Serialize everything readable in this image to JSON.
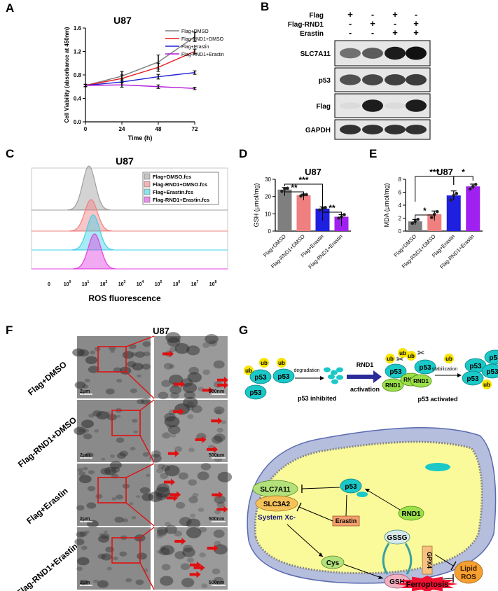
{
  "panels": {
    "a": {
      "letter": "A",
      "title": "U87",
      "ylabel": "Cell Viability (absorbance at 450nm)",
      "xlabel": "Time (h)",
      "yticks": [
        "0.0",
        "0.4",
        "0.8",
        "1.2",
        "1.6"
      ],
      "xticks": [
        "0",
        "24",
        "48",
        "72"
      ],
      "colors": [
        "#7f7f7f",
        "#e41a1c",
        "#1f1fd6",
        "#b41ad6"
      ]
    },
    "b": {
      "letter": "B",
      "rows": [
        {
          "label": "Flag",
          "marks": [
            "+",
            "-",
            "+",
            "-"
          ]
        },
        {
          "label": "Flag-RND1",
          "marks": [
            "-",
            "+",
            "-",
            "+"
          ]
        },
        {
          "label": "Erastin",
          "marks": [
            "-",
            "-",
            "+",
            "+"
          ]
        }
      ],
      "blots": [
        "SLC7A11",
        "p53",
        "Flag",
        "GAPDH"
      ]
    },
    "c": {
      "letter": "C",
      "title": "U87",
      "xlabel": "ROS fluorescence",
      "legend": [
        "Flag+DMSO.fcs",
        "Flag-RND1+DMSO.fcs",
        "Flag+Erastin.fcs",
        "Flag-RND1+Erastin.fcs"
      ],
      "colors": [
        "#9e9e9e",
        "#f08080",
        "#3fd0e8",
        "#e040e0"
      ],
      "xticks": [
        {
          "base": "0",
          "exp": ""
        },
        {
          "base": "10",
          "exp": "0"
        },
        {
          "base": "10",
          "exp": "1"
        },
        {
          "base": "10",
          "exp": "2"
        },
        {
          "base": "10",
          "exp": "3"
        },
        {
          "base": "10",
          "exp": "4"
        },
        {
          "base": "10",
          "exp": "5"
        },
        {
          "base": "10",
          "exp": "6"
        },
        {
          "base": "10",
          "exp": "7"
        },
        {
          "base": "10",
          "exp": "8"
        }
      ]
    },
    "d": {
      "letter": "D",
      "title": "U87",
      "ylabel": "GSH (μmol/mg)",
      "yticks": [
        "0",
        "10",
        "20",
        "30"
      ],
      "sig": [
        "**",
        "***",
        "**"
      ],
      "colors": [
        "#7f7f7f",
        "#f08080",
        "#1f1fe0",
        "#a020f0"
      ]
    },
    "e": {
      "letter": "E",
      "title": "U87",
      "ylabel": "MDA (μmol/mg)",
      "yticks": [
        "0",
        "2",
        "4",
        "6",
        "8"
      ],
      "sig": [
        "*",
        "***",
        "*"
      ],
      "colors": [
        "#7f7f7f",
        "#f08080",
        "#1f1fe0",
        "#a020f0"
      ]
    },
    "f": {
      "letter": "F",
      "title": "U87",
      "rows": [
        "Flag+DMSO",
        "Flag-RND1+DMSO",
        "Flag+Erastin",
        "Flag-RND1+Erastin"
      ],
      "scale_left": "2μm",
      "scale_right": "500nm"
    },
    "g": {
      "letter": "G",
      "ub": "ub",
      "p53": "p53",
      "rnd1": "RND1",
      "degradation": "degradation",
      "rnd1_activation_1": "RND1",
      "rnd1_activation_2": "activation",
      "stabilization": "stabilization",
      "p53_inhibited": "p53 inhibited",
      "p53_activated": "p53 activated",
      "slc7a11": "SLC7A11",
      "slc3a2": "SLC3A2",
      "system_xc": "System Xc-",
      "erastin": "Erastin",
      "gssg": "GSSG",
      "gsh": "GSH",
      "gpx4": "GPX4",
      "cys": "Cys",
      "lipid_1": "Lipid",
      "lipid_2": "ROS",
      "ferroptosis": "Ferroptosis"
    }
  },
  "chart_data": [
    {
      "type": "line",
      "title": "U87",
      "xlabel": "Time (h)",
      "ylabel": "Cell Viability (absorbance at 450nm)",
      "x": [
        0,
        24,
        48,
        72
      ],
      "xlim": [
        0,
        72
      ],
      "ylim": [
        0,
        1.6
      ],
      "legend_position": "top-right",
      "series": [
        {
          "name": "Flag+DMSO",
          "values": [
            0.62,
            0.78,
            1.02,
            1.45
          ],
          "err": [
            0.02,
            0.08,
            0.12,
            0.08
          ]
        },
        {
          "name": "Flag-RND1+DMSO",
          "values": [
            0.62,
            0.74,
            0.93,
            1.2
          ],
          "err": [
            0.02,
            0.06,
            0.07,
            0.04
          ]
        },
        {
          "name": "Flag+Erastin",
          "values": [
            0.62,
            0.68,
            0.77,
            0.84
          ],
          "err": [
            0.02,
            0.05,
            0.04,
            0.03
          ]
        },
        {
          "name": "Flag-RND1+Erastin",
          "values": [
            0.62,
            0.63,
            0.6,
            0.57
          ],
          "err": [
            0.02,
            0.04,
            0.03,
            0.02
          ]
        }
      ]
    },
    {
      "type": "bar",
      "title": "U87",
      "ylabel": "GSH (μmol/mg)",
      "categories": [
        "Flag+DMSO",
        "Flag-RND1+DMSO",
        "Flag+Erastin",
        "Flag-RND1+Erastin"
      ],
      "values": [
        24,
        20.8,
        13,
        8.3
      ],
      "err": [
        1.2,
        0.6,
        1.0,
        1.2
      ],
      "points": [
        [
          23,
          24.5,
          24.8
        ],
        [
          20.3,
          21,
          21.1
        ],
        [
          12.2,
          13.3,
          13.6
        ],
        [
          7.5,
          8.2,
          9.5
        ]
      ],
      "ylim": [
        0,
        30
      ]
    },
    {
      "type": "bar",
      "title": "U87",
      "ylabel": "MDA (μmol/mg)",
      "categories": [
        "Flag+DMSO",
        "Flag-RND1+DMSO",
        "Flag+Erastin",
        "Flag-RND1+Erastin"
      ],
      "values": [
        1.5,
        2.6,
        5.5,
        6.9
      ],
      "err": [
        0.3,
        0.5,
        0.7,
        0.35
      ],
      "points": [
        [
          1.2,
          1.5,
          1.8
        ],
        [
          2.1,
          2.6,
          3.0
        ],
        [
          4.8,
          5.5,
          5.8
        ],
        [
          6.5,
          6.9,
          7.2
        ]
      ],
      "ylim": [
        0,
        8
      ]
    }
  ]
}
